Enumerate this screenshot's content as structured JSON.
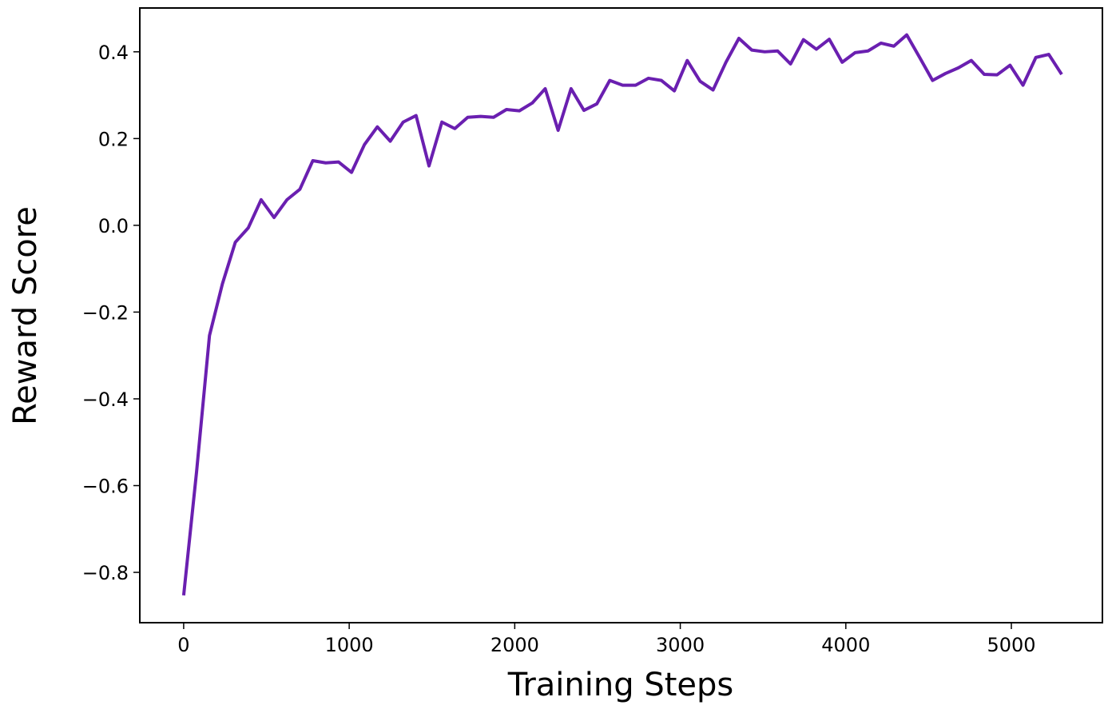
{
  "chart_data": {
    "type": "line",
    "x_label": "Training Steps",
    "y_label": "Reward Score",
    "xlim": [
      -265,
      5550
    ],
    "ylim": [
      -0.916,
      0.501
    ],
    "xticks": [
      0,
      1000,
      2000,
      3000,
      4000,
      5000
    ],
    "yticks": [
      {
        "value": -0.8,
        "label": "−0.8"
      },
      {
        "value": -0.6,
        "label": "−0.6"
      },
      {
        "value": -0.4,
        "label": "−0.4"
      },
      {
        "value": -0.2,
        "label": "−0.2"
      },
      {
        "value": 0,
        "label": "0.0"
      },
      0.2,
      0.4
    ],
    "x": [
      0,
      78,
      156,
      234,
      312,
      390,
      468,
      546,
      624,
      702,
      780,
      858,
      936,
      1014,
      1092,
      1170,
      1248,
      1326,
      1404,
      1482,
      1560,
      1638,
      1716,
      1794,
      1872,
      1950,
      2028,
      2106,
      2184,
      2262,
      2340,
      2418,
      2496,
      2574,
      2652,
      2730,
      2808,
      2886,
      2964,
      3042,
      3120,
      3198,
      3276,
      3354,
      3432,
      3510,
      3588,
      3666,
      3744,
      3822,
      3900,
      3978,
      4056,
      4134,
      4212,
      4290,
      4368,
      4446,
      4524,
      4602,
      4680,
      4758,
      4836,
      4914,
      4992,
      5070,
      5148,
      5226,
      5304
    ],
    "series": [
      {
        "color": "#6a1fb0",
        "values": [
          -0.853,
          -0.568,
          -0.254,
          -0.135,
          -0.039,
          -0.006,
          0.059,
          0.018,
          0.059,
          0.083,
          0.149,
          0.144,
          0.146,
          0.122,
          0.186,
          0.227,
          0.194,
          0.238,
          0.253,
          0.137,
          0.238,
          0.223,
          0.249,
          0.251,
          0.249,
          0.267,
          0.264,
          0.282,
          0.315,
          0.219,
          0.315,
          0.265,
          0.28,
          0.334,
          0.323,
          0.323,
          0.339,
          0.334,
          0.31,
          0.38,
          0.332,
          0.312,
          0.376,
          0.431,
          0.404,
          0.4,
          0.402,
          0.372,
          0.428,
          0.406,
          0.429,
          0.376,
          0.398,
          0.402,
          0.42,
          0.413,
          0.439,
          0.387,
          0.334,
          0.35,
          0.363,
          0.38,
          0.348,
          0.347,
          0.369,
          0.323,
          0.387,
          0.394,
          0.348
        ]
      }
    ]
  }
}
